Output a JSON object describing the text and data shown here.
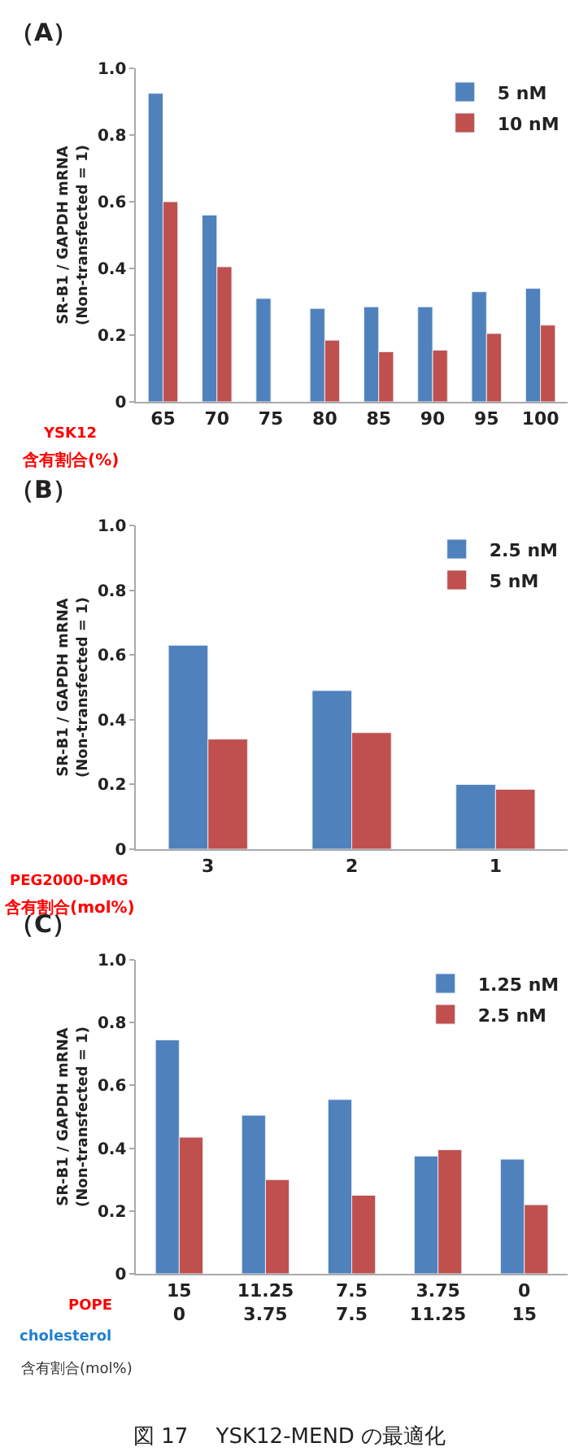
{
  "chart_data": [
    {
      "type": "bar",
      "title": "（A）",
      "xlabel": "YSK12\n含有割合(%)",
      "ylabel": "SR-B1 / GAPDH mRNA\n(Non-transfected = 1)",
      "categories": [
        "65",
        "70",
        "75",
        "80",
        "85",
        "90",
        "95",
        "100"
      ],
      "series": [
        {
          "name": "5 nM",
          "color": "#4f81bd",
          "values": [
            0.925,
            0.56,
            0.31,
            0.28,
            0.285,
            0.285,
            0.33,
            0.34
          ]
        },
        {
          "name": "10 nM",
          "color": "#c0504d",
          "values": [
            0.6,
            0.405,
            null,
            0.185,
            0.15,
            0.155,
            0.205,
            0.23
          ]
        }
      ],
      "ylim": [
        0,
        1.0
      ],
      "yticks": [
        {
          "value": 0,
          "label": "0"
        },
        {
          "value": 0.2,
          "label": "0.2"
        },
        {
          "value": 0.4,
          "label": "0.4"
        },
        {
          "value": 0.6,
          "label": "0.6"
        },
        {
          "value": 0.8,
          "label": "0.8"
        },
        {
          "value": 1.0,
          "label": "1.0"
        }
      ],
      "grid": false,
      "legend": "top right"
    },
    {
      "type": "bar",
      "title": "（B）",
      "xlabel": "PEG2000-DMG\n含有割合(mol%)",
      "ylabel": "SR-B1 / GAPDH mRNA\n(Non-transfected = 1)",
      "categories": [
        "3",
        "2",
        "1"
      ],
      "series": [
        {
          "name": "2.5 nM",
          "color": "#4f81bd",
          "values": [
            0.63,
            0.49,
            0.2
          ]
        },
        {
          "name": "5 nM",
          "color": "#c0504d",
          "values": [
            0.34,
            0.36,
            0.185
          ]
        }
      ],
      "ylim": [
        0,
        1.0
      ],
      "yticks": [
        {
          "value": 0,
          "label": "0"
        },
        {
          "value": 0.2,
          "label": "0.2"
        },
        {
          "value": 0.4,
          "label": "0.4"
        },
        {
          "value": 0.6,
          "label": "0.6"
        },
        {
          "value": 0.8,
          "label": "0.8"
        },
        {
          "value": 1.0,
          "label": "1.0"
        }
      ],
      "grid": false,
      "legend": "top right"
    },
    {
      "type": "bar",
      "title": "（C）",
      "xlabel": "POPE\ncholesterol\n含有割合(mol%)",
      "ylabel": "SR-B1 / GAPDH mRNA\n(Non-transfected = 1)",
      "categories": [
        "15\n0",
        "11.25\n3.75",
        "7.5\n7.5",
        "3.75\n11.25",
        "0\n15"
      ],
      "series": [
        {
          "name": "1.25 nM",
          "color": "#4f81bd",
          "values": [
            0.745,
            0.505,
            0.555,
            0.375,
            0.365
          ]
        },
        {
          "name": "2.5 nM",
          "color": "#c0504d",
          "values": [
            0.435,
            0.3,
            0.25,
            0.395,
            0.22
          ]
        }
      ],
      "ylim": [
        0,
        1.0
      ],
      "yticks": [
        {
          "value": 0,
          "label": "0"
        },
        {
          "value": 0.2,
          "label": "0.2"
        },
        {
          "value": 0.4,
          "label": "0.4"
        },
        {
          "value": 0.6,
          "label": "0.6"
        },
        {
          "value": 0.8,
          "label": "0.8"
        },
        {
          "value": 1.0,
          "label": "1.0"
        }
      ],
      "grid": false,
      "legend": "top right",
      "annotations": [
        "図 17　 YSK12-MEND の最適化"
      ]
    }
  ]
}
